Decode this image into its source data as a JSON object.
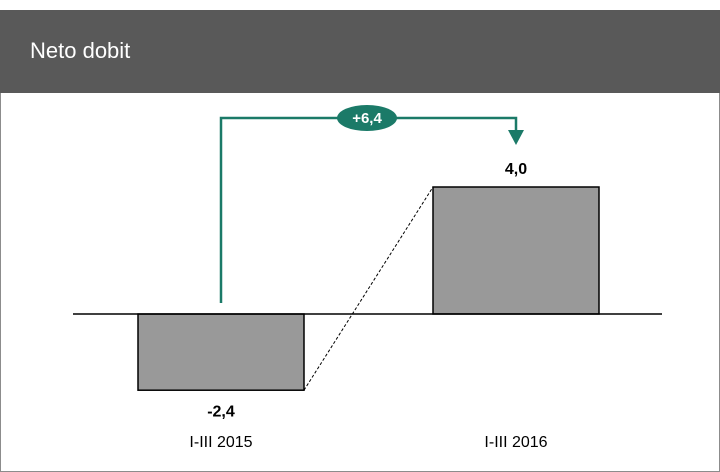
{
  "chart_data": {
    "type": "bar",
    "title": "Neto dobit",
    "categories": [
      "I-III 2015",
      "I-III 2016"
    ],
    "values": [
      -2.4,
      4.0
    ],
    "value_labels": [
      "-2,4",
      "4,0"
    ],
    "color": "#999999",
    "annotation": "+6,4",
    "annotation_color": "#1b7a68"
  }
}
